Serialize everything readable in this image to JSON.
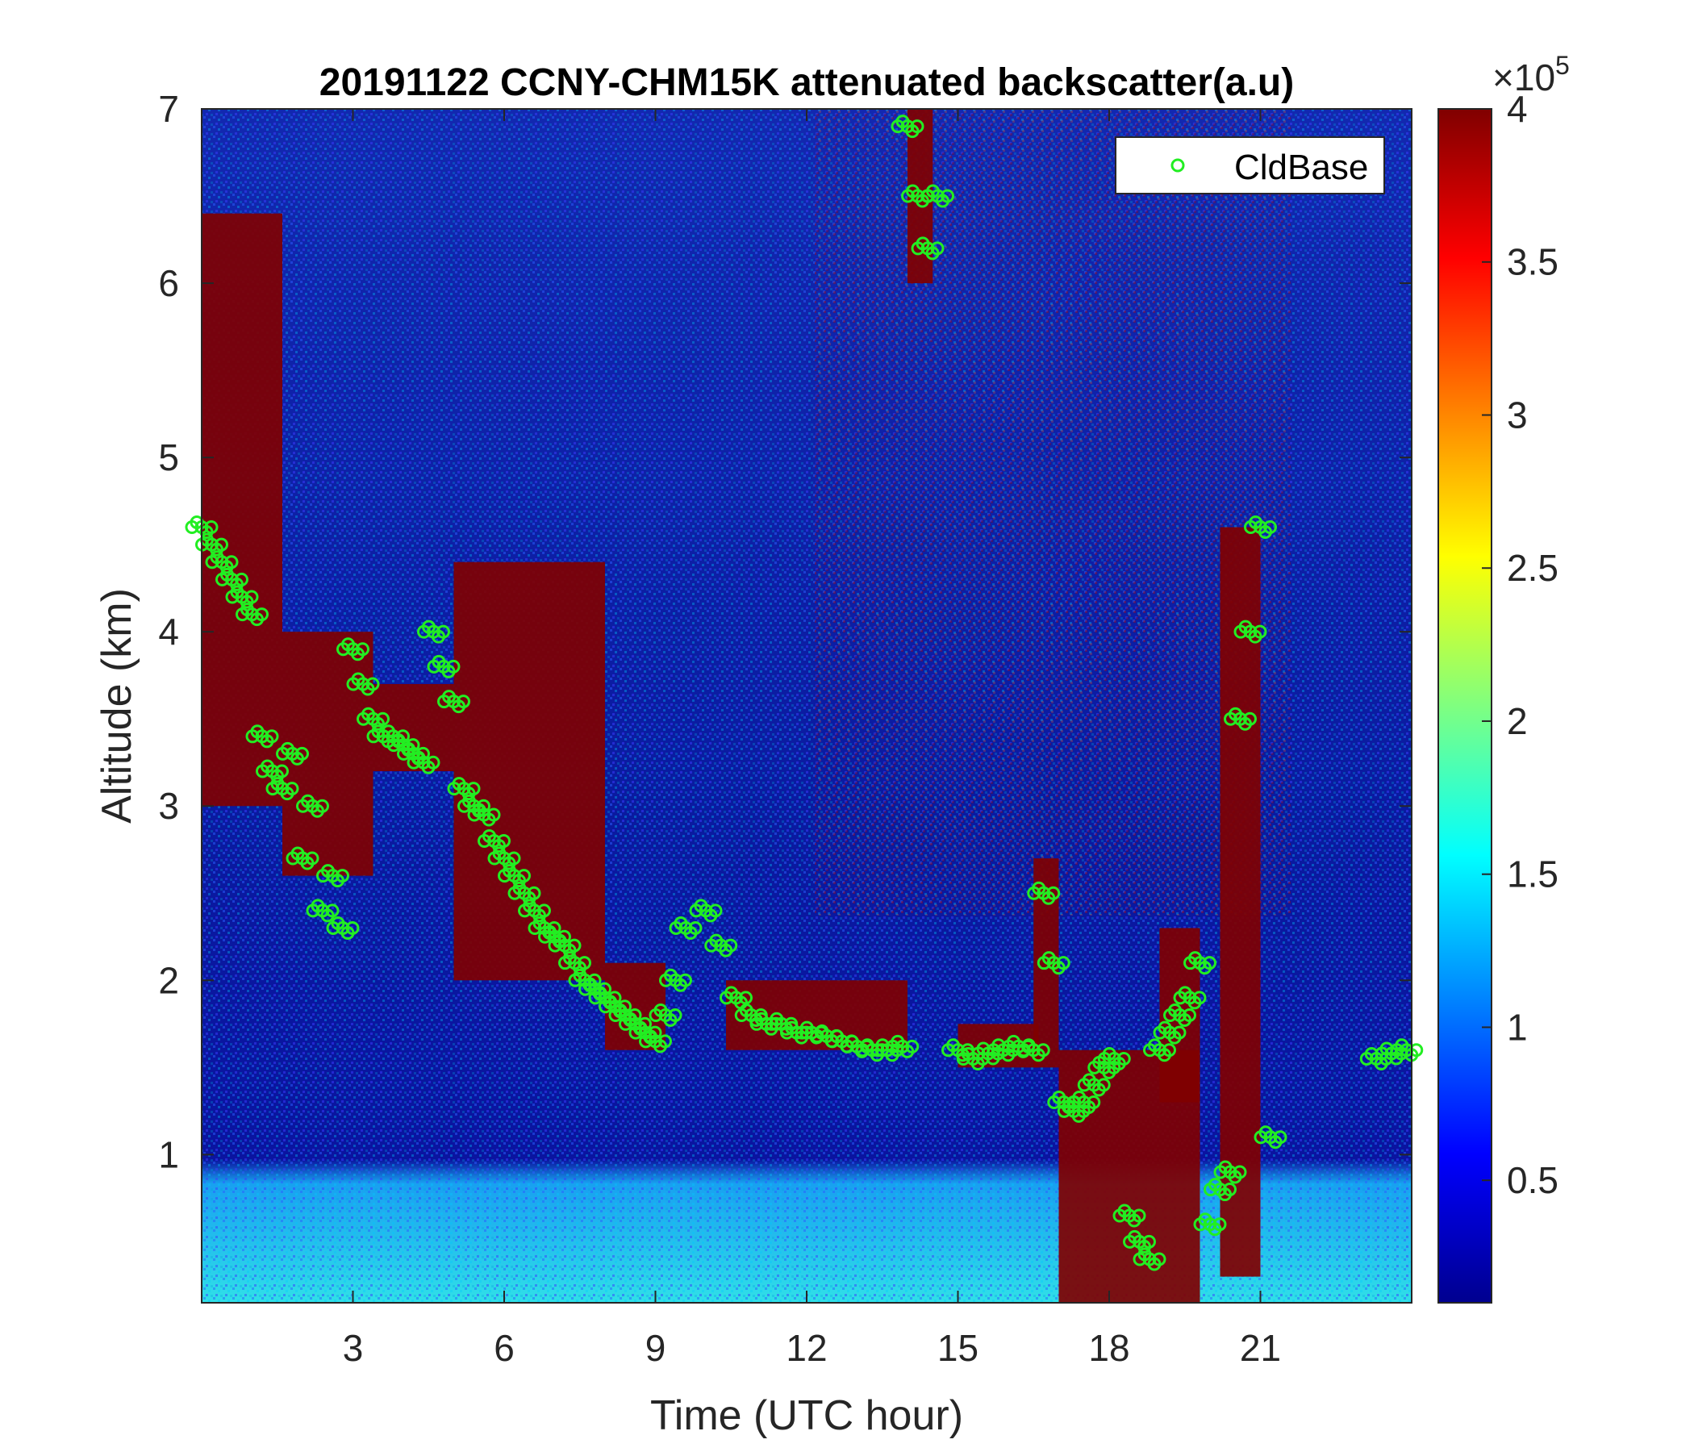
{
  "chart_data": {
    "type": "heatmap",
    "title": "20191122 CCNY-CHM15K attenuated backscatter(a.u)",
    "xlabel": "Time (UTC hour)",
    "ylabel": "Altitude (km)",
    "xlim": [
      0,
      24
    ],
    "ylim": [
      0.15,
      7
    ],
    "xticks": [
      3,
      6,
      9,
      12,
      15,
      18,
      21
    ],
    "yticks": [
      1,
      2,
      3,
      4,
      5,
      6,
      7
    ],
    "colorbar": {
      "clim": [
        10000,
        400000
      ],
      "ticks": [
        0.5,
        1,
        1.5,
        2,
        2.5,
        3,
        3.5,
        4
      ],
      "multiplier_base": "×10",
      "multiplier_exponent": "5",
      "colormap": "jet"
    },
    "legend": {
      "location": "top-right",
      "entries": [
        "CldBase"
      ]
    },
    "colors": {
      "cloud_base_marker": "#22ee22",
      "background_low": "#00008f",
      "high": "#800000"
    },
    "series": [
      {
        "name": "CldBase",
        "marker": "circle",
        "x": [
          0.0,
          0.2,
          0.4,
          0.6,
          0.8,
          1.0,
          1.2,
          1.4,
          1.6,
          1.8,
          2.0,
          2.2,
          2.4,
          2.6,
          2.8,
          3.0,
          3.2,
          3.4,
          3.6,
          3.8,
          4.0,
          4.2,
          4.4,
          4.6,
          4.8,
          5.0,
          5.2,
          5.4,
          5.6,
          5.8,
          6.0,
          6.2,
          6.4,
          6.6,
          6.8,
          7.0,
          7.2,
          7.4,
          7.6,
          7.8,
          8.0,
          8.2,
          8.4,
          8.6,
          8.8,
          9.0,
          9.2,
          9.4,
          9.6,
          10.0,
          10.3,
          10.6,
          10.9,
          11.2,
          11.5,
          11.8,
          12.1,
          12.4,
          12.7,
          13.0,
          13.3,
          13.6,
          13.9,
          14.0,
          14.2,
          14.4,
          14.6,
          15.0,
          15.3,
          15.6,
          15.9,
          16.2,
          16.5,
          16.7,
          16.9,
          17.1,
          17.3,
          17.5,
          17.7,
          17.9,
          18.1,
          18.4,
          18.6,
          18.8,
          19.0,
          19.2,
          19.4,
          19.6,
          19.8,
          20.0,
          20.2,
          20.4,
          20.6,
          20.8,
          21.0,
          21.2,
          23.3,
          23.6,
          23.9
        ],
        "y": [
          4.6,
          4.5,
          4.4,
          4.3,
          4.2,
          4.1,
          3.4,
          3.2,
          3.1,
          3.3,
          2.7,
          3.0,
          2.4,
          2.6,
          2.3,
          3.9,
          3.7,
          3.5,
          3.4,
          3.4,
          3.35,
          3.3,
          3.25,
          4.0,
          3.8,
          3.6,
          3.1,
          3.0,
          2.95,
          2.8,
          2.7,
          2.6,
          2.5,
          2.4,
          2.3,
          2.25,
          2.2,
          2.1,
          2.0,
          1.95,
          1.9,
          1.85,
          1.8,
          1.75,
          1.7,
          1.65,
          1.8,
          2.0,
          2.3,
          2.4,
          2.2,
          1.9,
          1.8,
          1.75,
          1.75,
          1.7,
          1.7,
          1.68,
          1.65,
          1.62,
          1.6,
          1.6,
          1.62,
          6.9,
          6.5,
          6.2,
          6.5,
          1.6,
          1.55,
          1.58,
          1.6,
          1.62,
          1.6,
          2.5,
          2.1,
          1.3,
          1.25,
          1.3,
          1.4,
          1.5,
          1.55,
          0.65,
          0.5,
          0.4,
          1.6,
          1.7,
          1.8,
          1.9,
          2.1,
          0.6,
          0.8,
          0.9,
          3.5,
          4.0,
          4.6,
          1.1,
          1.55,
          1.58,
          1.6
        ]
      }
    ]
  }
}
